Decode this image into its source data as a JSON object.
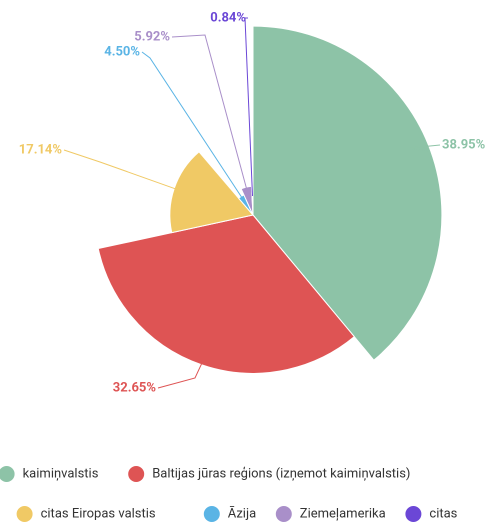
{
  "chart_data": {
    "type": "pie",
    "categories": [
      "kaimiņvalstis",
      "Baltijas jūras reģions (izņemot kaimiņvalstis)",
      "citas Eiropas valstis",
      "Āzija",
      "Ziemeļamerika",
      "citas"
    ],
    "values": [
      38.95,
      32.65,
      17.14,
      4.5,
      5.92,
      0.84
    ],
    "value_labels": [
      "38.95%",
      "32.65%",
      "17.14%",
      "4.50%",
      "5.92%",
      "0.84%"
    ],
    "colors": [
      "#8dc3a7",
      "#de5454",
      "#f0c965",
      "#5ab4e5",
      "#a98fc9",
      "#6b47d6"
    ]
  }
}
